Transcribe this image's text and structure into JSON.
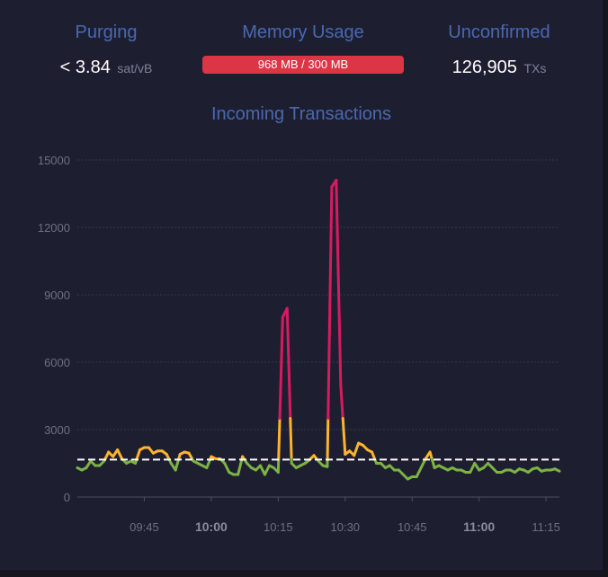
{
  "stats": {
    "purging": {
      "title": "Purging",
      "value": "< 3.84",
      "unit": "sat/vB"
    },
    "memory": {
      "title": "Memory Usage",
      "value": "968 MB / 300 MB",
      "fill_color": "#dc3545"
    },
    "unconfirmed": {
      "title": "Unconfirmed",
      "value": "126,905",
      "unit": "TXs"
    }
  },
  "chart_data": {
    "type": "line",
    "title": "Incoming Transactions",
    "xlabel": "",
    "ylabel": "",
    "ylim": [
      0,
      15000
    ],
    "y_ticks": [
      "0",
      "3000",
      "6000",
      "9000",
      "12000",
      "15000"
    ],
    "x_ticks": [
      {
        "time": "09:45",
        "major": false
      },
      {
        "time": "10:00",
        "major": true
      },
      {
        "time": "10:15",
        "major": false
      },
      {
        "time": "10:30",
        "major": false
      },
      {
        "time": "10:45",
        "major": false
      },
      {
        "time": "11:00",
        "major": true
      },
      {
        "time": "11:15",
        "major": false
      }
    ],
    "x_range": [
      "09:30",
      "11:18"
    ],
    "grid": true,
    "reference_line": {
      "value": 1667,
      "style": "dashed",
      "color": "#ffffff"
    },
    "color_thresholds": [
      {
        "max": 1667,
        "color": "#7cb342"
      },
      {
        "max": 3500,
        "color": "#fdb32b"
      },
      {
        "max": null,
        "color": "#d81b60"
      }
    ],
    "series": [
      {
        "x": [
          "09:30",
          "09:31",
          "09:32",
          "09:33",
          "09:34",
          "09:35",
          "09:36",
          "09:37",
          "09:38",
          "09:39",
          "09:40",
          "09:41",
          "09:42",
          "09:43",
          "09:44",
          "09:45",
          "09:46",
          "09:47",
          "09:48",
          "09:49",
          "09:50",
          "09:51",
          "09:52",
          "09:53",
          "09:54",
          "09:55",
          "09:56",
          "09:57",
          "09:58",
          "09:59",
          "10:00",
          "10:01",
          "10:02",
          "10:03",
          "10:04",
          "10:05",
          "10:06",
          "10:07",
          "10:08",
          "10:09",
          "10:10",
          "10:11",
          "10:12",
          "10:13",
          "10:14",
          "10:15",
          "10:16",
          "10:17",
          "10:18",
          "10:19",
          "10:20",
          "10:21",
          "10:22",
          "10:23",
          "10:24",
          "10:25",
          "10:26",
          "10:27",
          "10:28",
          "10:29",
          "10:30",
          "10:31",
          "10:32",
          "10:33",
          "10:34",
          "10:35",
          "10:36",
          "10:37",
          "10:38",
          "10:39",
          "10:40",
          "10:41",
          "10:42",
          "10:43",
          "10:44",
          "10:45",
          "10:46",
          "10:47",
          "10:48",
          "10:49",
          "10:50",
          "10:51",
          "10:52",
          "10:53",
          "10:54",
          "10:55",
          "10:56",
          "10:57",
          "10:58",
          "10:59",
          "11:00",
          "11:01",
          "11:02",
          "11:03",
          "11:04",
          "11:05",
          "11:06",
          "11:07",
          "11:08",
          "11:09",
          "11:10",
          "11:11",
          "11:12",
          "11:13",
          "11:14",
          "11:15",
          "11:16",
          "11:17",
          "11:18"
        ],
        "values": [
          1300,
          1200,
          1300,
          1600,
          1400,
          1400,
          1600,
          2000,
          1800,
          2100,
          1700,
          1500,
          1600,
          1500,
          2100,
          2200,
          2200,
          1950,
          2050,
          2050,
          1900,
          1500,
          1200,
          1900,
          2000,
          1950,
          1600,
          1500,
          1400,
          1300,
          1800,
          1700,
          1700,
          1500,
          1100,
          1000,
          1000,
          1800,
          1500,
          1300,
          1200,
          1400,
          1000,
          1400,
          1300,
          1100,
          8000,
          8400,
          1500,
          1300,
          1400,
          1500,
          1650,
          1850,
          1600,
          1400,
          1350,
          13800,
          14100,
          5000,
          1900,
          2050,
          1850,
          2400,
          2300,
          2100,
          2000,
          1500,
          1500,
          1300,
          1400,
          1200,
          1200,
          1000,
          800,
          900,
          900,
          1300,
          1700,
          2000,
          1300,
          1400,
          1300,
          1200,
          1300,
          1200,
          1200,
          1100,
          1100,
          1500,
          1200,
          1300,
          1500,
          1300,
          1100,
          1100,
          1200,
          1200,
          1100,
          1250,
          1200,
          1100,
          1250,
          1300,
          1150,
          1200,
          1200,
          1250,
          1150
        ]
      }
    ]
  }
}
